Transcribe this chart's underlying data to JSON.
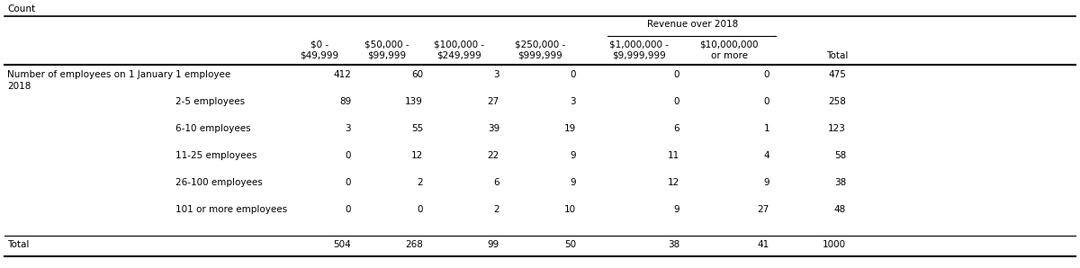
{
  "super_title": "Count",
  "revenue_header": "Revenue over 2018",
  "col_headers": [
    [
      "$0 -",
      "$49,999"
    ],
    [
      "$50,000 -",
      "$99,999"
    ],
    [
      "$100,000 -",
      "$249,999"
    ],
    [
      "$250,000 -",
      "$999,999"
    ],
    [
      "$1,000,000 -",
      "$9,999,999"
    ],
    [
      "$10,000,000",
      "or more"
    ],
    [
      "",
      "Total"
    ]
  ],
  "row_group_label_line1": "Number of employees on 1 January",
  "row_group_label_line2": "2018",
  "row_labels": [
    "1 employee",
    "2-5 employees",
    "6-10 employees",
    "11-25 employees",
    "26-100 employees",
    "101 or more employees"
  ],
  "data": [
    [
      412,
      60,
      3,
      0,
      0,
      0,
      475
    ],
    [
      89,
      139,
      27,
      3,
      0,
      0,
      258
    ],
    [
      3,
      55,
      39,
      19,
      6,
      1,
      123
    ],
    [
      0,
      12,
      22,
      9,
      11,
      4,
      58
    ],
    [
      0,
      2,
      6,
      9,
      12,
      9,
      38
    ],
    [
      0,
      0,
      2,
      10,
      9,
      27,
      48
    ]
  ],
  "total_row": [
    504,
    268,
    99,
    50,
    38,
    41,
    1000
  ],
  "total_label": "Total",
  "background_color": "#ffffff",
  "text_color": "#000000",
  "font_size": 7.5,
  "font_family": "DejaVu Sans"
}
